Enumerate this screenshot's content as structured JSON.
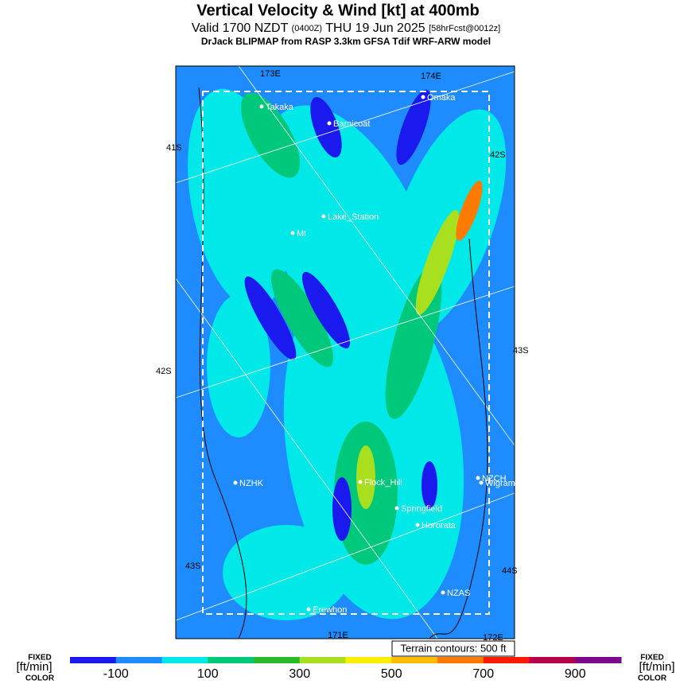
{
  "header": {
    "title": "Vertical Velocity & Wind [kt] at 400mb",
    "valid": "Valid 1700 NZDT",
    "utc": "(0400Z)",
    "date": "THU 19 Jun 2025",
    "forecast": "[58hrFcst@0012z]",
    "model": "DrJack BLIPMAP from RASP 3.3km GFSA Tdif WRF-ARW model"
  },
  "map": {
    "grid_labels": [
      "173E",
      "174E",
      "41S",
      "42S",
      "42S",
      "43S",
      "43S",
      "44S",
      "171E",
      "172E"
    ],
    "places": [
      "Takaka",
      "Omaka",
      "Barnicoat",
      "Lake_Station",
      "Mt",
      "NZHK",
      "Flock_Hill",
      "Springfield",
      "Hororata",
      "NZCH",
      "Wigram",
      "NZAS",
      "Erewhon"
    ],
    "terrain_note": "Terrain contours: 500 ft"
  },
  "colorbar": {
    "left": [
      "FIXED",
      "[ft/min]",
      "COLOR"
    ],
    "right": [
      "FIXED",
      "[ft/min]",
      "COLOR"
    ],
    "colors": [
      "#1a1aef",
      "#1e8cff",
      "#00e8e8",
      "#00c87a",
      "#2cb82c",
      "#a8e020",
      "#ffee00",
      "#ffbb00",
      "#ff7a00",
      "#ff1a00",
      "#b8004a",
      "#7a0a8a"
    ],
    "ticks": [
      "-100",
      "100",
      "300",
      "500",
      "700",
      "900"
    ]
  }
}
